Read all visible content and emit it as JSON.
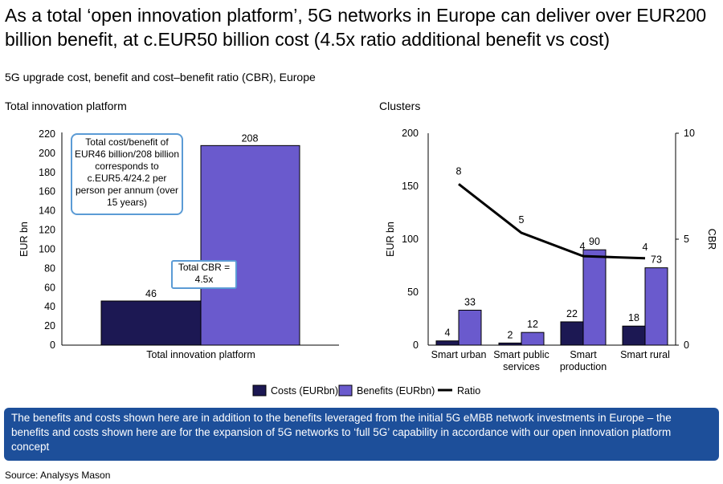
{
  "title": "As a total ‘open innovation platform’, 5G networks in Europe can deliver over EUR200 billion benefit, at c.EUR50 billion cost (4.5x ratio additional benefit vs cost)",
  "subtitle": "5G upgrade cost, benefit and cost–benefit ratio (CBR), Europe",
  "colors": {
    "costs": "#1c1853",
    "benefits": "#6a5acd",
    "ratio": "#000000",
    "note_bg": "#1d4f9a",
    "callout_border": "#5b9bd5"
  },
  "chart_data": [
    {
      "type": "bar",
      "title": "Total innovation platform",
      "ylabel": "EUR bn",
      "ylim": [
        0,
        220
      ],
      "yticks": [
        0,
        20,
        40,
        60,
        80,
        100,
        120,
        140,
        160,
        180,
        200,
        220
      ],
      "categories": [
        "Total innovation platform"
      ],
      "series": [
        {
          "name": "Costs (EURbn)",
          "values": [
            46
          ]
        },
        {
          "name": "Benefits (EURbn)",
          "values": [
            208
          ]
        }
      ],
      "annotations": [
        "Total cost/benefit of EUR46 billion/208 billion corresponds to c.EUR5.4/24.2 per person per annum (over 15 years)",
        "Total CBR = 4.5x"
      ]
    },
    {
      "type": "bar+line",
      "title": "Clusters",
      "ylabel": "EUR bn",
      "y2label": "CBR",
      "ylim": [
        0,
        200
      ],
      "y2lim": [
        0,
        10
      ],
      "yticks": [
        0,
        50,
        100,
        150,
        200
      ],
      "y2ticks": [
        0,
        5,
        10
      ],
      "categories": [
        [
          "Smart urban"
        ],
        [
          "Smart public",
          "services"
        ],
        [
          "Smart",
          "production"
        ],
        [
          "Smart rural"
        ]
      ],
      "series": [
        {
          "name": "Costs (EURbn)",
          "values": [
            4,
            2,
            22,
            18
          ]
        },
        {
          "name": "Benefits (EURbn)",
          "values": [
            33,
            12,
            90,
            73
          ]
        },
        {
          "name": "Ratio",
          "axis": "right",
          "values": [
            7.6,
            5.3,
            4.2,
            4.1
          ],
          "labels": [
            "8",
            "5",
            "4",
            "4"
          ]
        }
      ],
      "legend": "bottom"
    }
  ],
  "note": "The benefits and costs shown here are in addition to the benefits leveraged from the initial 5G eMBB network investments in Europe – the benefits and costs shown here are for the expansion of 5G networks to ‘full 5G’ capability in accordance with our open innovation platform concept",
  "source": "Source: Analysys Mason"
}
